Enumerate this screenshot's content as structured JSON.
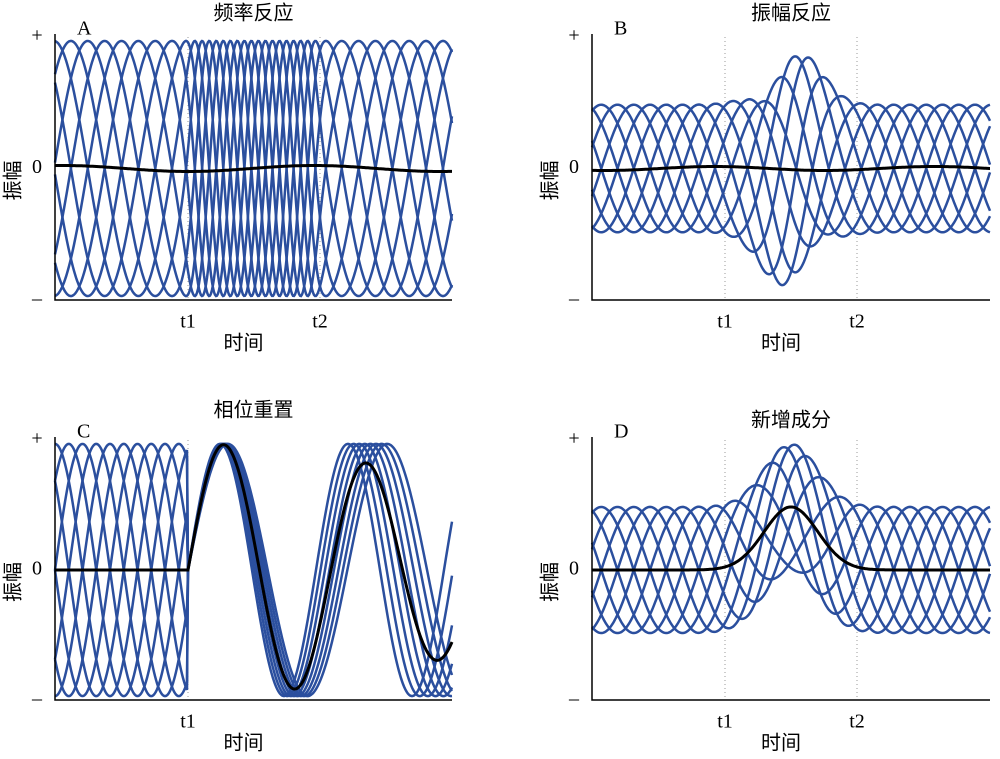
{
  "panels": [
    {
      "letter": "A",
      "title": "频率反应",
      "y_ticks": [
        "+",
        "0",
        "–"
      ],
      "y_label": "振幅",
      "x_label": "时间",
      "x_ticks": [
        "t1",
        "t2"
      ]
    },
    {
      "letter": "B",
      "title": "振幅反应",
      "y_ticks": [
        "+",
        "0",
        "–"
      ],
      "y_label": "振幅",
      "x_label": "时间",
      "x_ticks": [
        "t1",
        "t2"
      ]
    },
    {
      "letter": "C",
      "title": "相位重置",
      "y_ticks": [
        "+",
        "0",
        "–"
      ],
      "y_label": "振幅",
      "x_label": "时间",
      "x_ticks": [
        "t1"
      ]
    },
    {
      "letter": "D",
      "title": "新增成分",
      "y_ticks": [
        "+",
        "0",
        "–"
      ],
      "y_label": "振幅",
      "x_label": "时间",
      "x_ticks": [
        "t1",
        "t2"
      ]
    }
  ]
}
